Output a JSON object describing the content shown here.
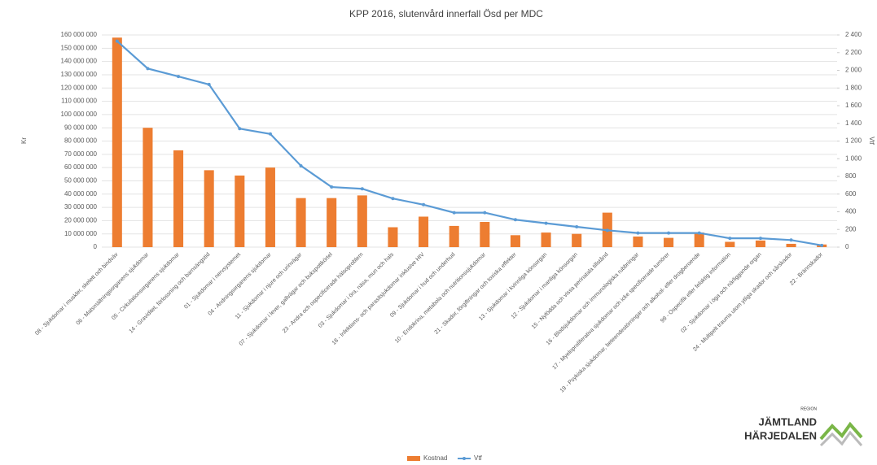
{
  "chart_data": {
    "type": "bar_line",
    "title": "KPP 2016, slutenvård innerfall Ösd per MDC",
    "y_label": "Kr",
    "y2_label": "Vtf",
    "categories": [
      "08 - Sjukdomar i muskler, skelett och bindväv",
      "06 - Matsmältningsorganens sjukdomar",
      "05 - Cirkulationsorganens sjukdomar",
      "14 - Graviditet, förlossning och barnsängstid",
      "01 - Sjukdomar i nervsystemet",
      "04 - Andningsorganens sjukdomar",
      "11 - Sjukdomar i njure och urinvägar",
      "07 - Sjukdomar i lever, gallvägar och bukspottkörtel",
      "23 - Andra och ospecificerade hälsoproblem",
      "03 - Sjukdomar i öra, näsa, mun och hals",
      "18 - Infektions- och parasitsjukdomar inklusive HIV",
      "09 - Sjukdomar i hud och underhud",
      "10 - Endokrina, metabola och nutritionssjukdomar",
      "21 - Skador, förgiftningar och toxiska effekter",
      "13 - Sjukdomar i kvinnliga könsorgan",
      "12 - Sjukdomar i manliga könsorgan",
      "15 - Nyfödda och vissa perinatala tillstånd",
      "16 - Blodsjukdomar och immunologiska rubbningar",
      "17 - Myeloproliferativa sjukdomar och icke specificerade tumörer",
      "19 - Psykiska sjukdomar, beteendestörningar och alkohol- eller drogberoende",
      "99 - Ospecifik eller felaktig information",
      "02 - Sjukdomar i öga och närliggande organ",
      "24 - Multipelt trauma utom ytliga skador och sårskador",
      "22 - Brännskador"
    ],
    "series": [
      {
        "name": "Kostnad",
        "color": "#ed7d31",
        "type": "bar",
        "values": [
          158000000,
          90000000,
          73000000,
          58000000,
          54000000,
          60000000,
          37000000,
          37000000,
          39000000,
          15000000,
          23000000,
          16000000,
          19000000,
          9000000,
          11000000,
          10000000,
          26000000,
          8000000,
          7000000,
          11000000,
          4000000,
          5000000,
          2500000,
          2000000
        ]
      },
      {
        "name": "Vtf",
        "color": "#5b9bd5",
        "type": "line",
        "axis": "y2",
        "values": [
          2330,
          2020,
          1930,
          1840,
          1340,
          1280,
          920,
          680,
          660,
          550,
          480,
          390,
          390,
          310,
          270,
          230,
          190,
          160,
          160,
          160,
          100,
          100,
          80,
          20
        ]
      }
    ],
    "ylim": [
      0,
      160000000
    ],
    "yticks": [
      0,
      {
        "value": 10000000,
        "label": "10 000 000"
      },
      {
        "value": 20000000,
        "label": "20 000 000"
      },
      {
        "value": 30000000,
        "label": "30 000 000"
      },
      {
        "value": 40000000,
        "label": "40 000 000"
      },
      {
        "value": 50000000,
        "label": "50 000 000"
      },
      {
        "value": 60000000,
        "label": "60 000 000"
      },
      {
        "value": 70000000,
        "label": "70 000 000"
      },
      {
        "value": 80000000,
        "label": "80 000 000"
      },
      {
        "value": 90000000,
        "label": "90 000 000"
      },
      {
        "value": 100000000,
        "label": "100 000 000"
      },
      {
        "value": 110000000,
        "label": "110 000 000"
      },
      {
        "value": 120000000,
        "label": "120 000 000"
      },
      {
        "value": 130000000,
        "label": "130 000 000"
      },
      {
        "value": 140000000,
        "label": "140 000 000"
      },
      {
        "value": 150000000,
        "label": "150 000 000"
      },
      {
        "value": 160000000,
        "label": "160 000 000"
      }
    ],
    "y2lim": [
      0,
      2400
    ],
    "y2ticks": [
      0,
      200,
      400,
      600,
      800,
      {
        "value": 1000,
        "label": "1 000"
      },
      {
        "value": 1200,
        "label": "1 200"
      },
      {
        "value": 1400,
        "label": "1 400"
      },
      {
        "value": 1600,
        "label": "1 600"
      },
      {
        "value": 1800,
        "label": "1 800"
      },
      {
        "value": 2000,
        "label": "2 000"
      },
      {
        "value": 2200,
        "label": "2 200"
      },
      {
        "value": 2400,
        "label": "2 400"
      }
    ],
    "grid": true,
    "legend": "bottom"
  },
  "logo": {
    "region": "REGION",
    "line1": "JÄMTLAND",
    "line2": "HÄRJEDALEN"
  }
}
